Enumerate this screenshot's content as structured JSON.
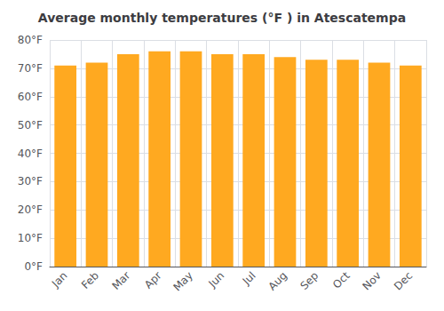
{
  "chart_data": {
    "type": "bar",
    "title": "Average monthly temperatures (°F ) in Atescatempa",
    "categories": [
      "Jan",
      "Feb",
      "Mar",
      "Apr",
      "May",
      "Jun",
      "Jul",
      "Aug",
      "Sep",
      "Oct",
      "Nov",
      "Dec"
    ],
    "values": [
      71,
      72,
      75,
      76,
      76,
      75,
      75,
      74,
      73,
      73,
      72,
      71
    ],
    "color": "#FFA920",
    "ylim": [
      0,
      80
    ],
    "yticks": [
      {
        "value": 0,
        "label": "0°F"
      },
      {
        "value": 10,
        "label": "10°F"
      },
      {
        "value": 20,
        "label": "20°F"
      },
      {
        "value": 30,
        "label": "30°F"
      },
      {
        "value": 40,
        "label": "40°F"
      },
      {
        "value": 50,
        "label": "50°F"
      },
      {
        "value": 60,
        "label": "60°F"
      },
      {
        "value": 70,
        "label": "70°F"
      },
      {
        "value": 80,
        "label": "80°F"
      }
    ],
    "grid": true
  }
}
